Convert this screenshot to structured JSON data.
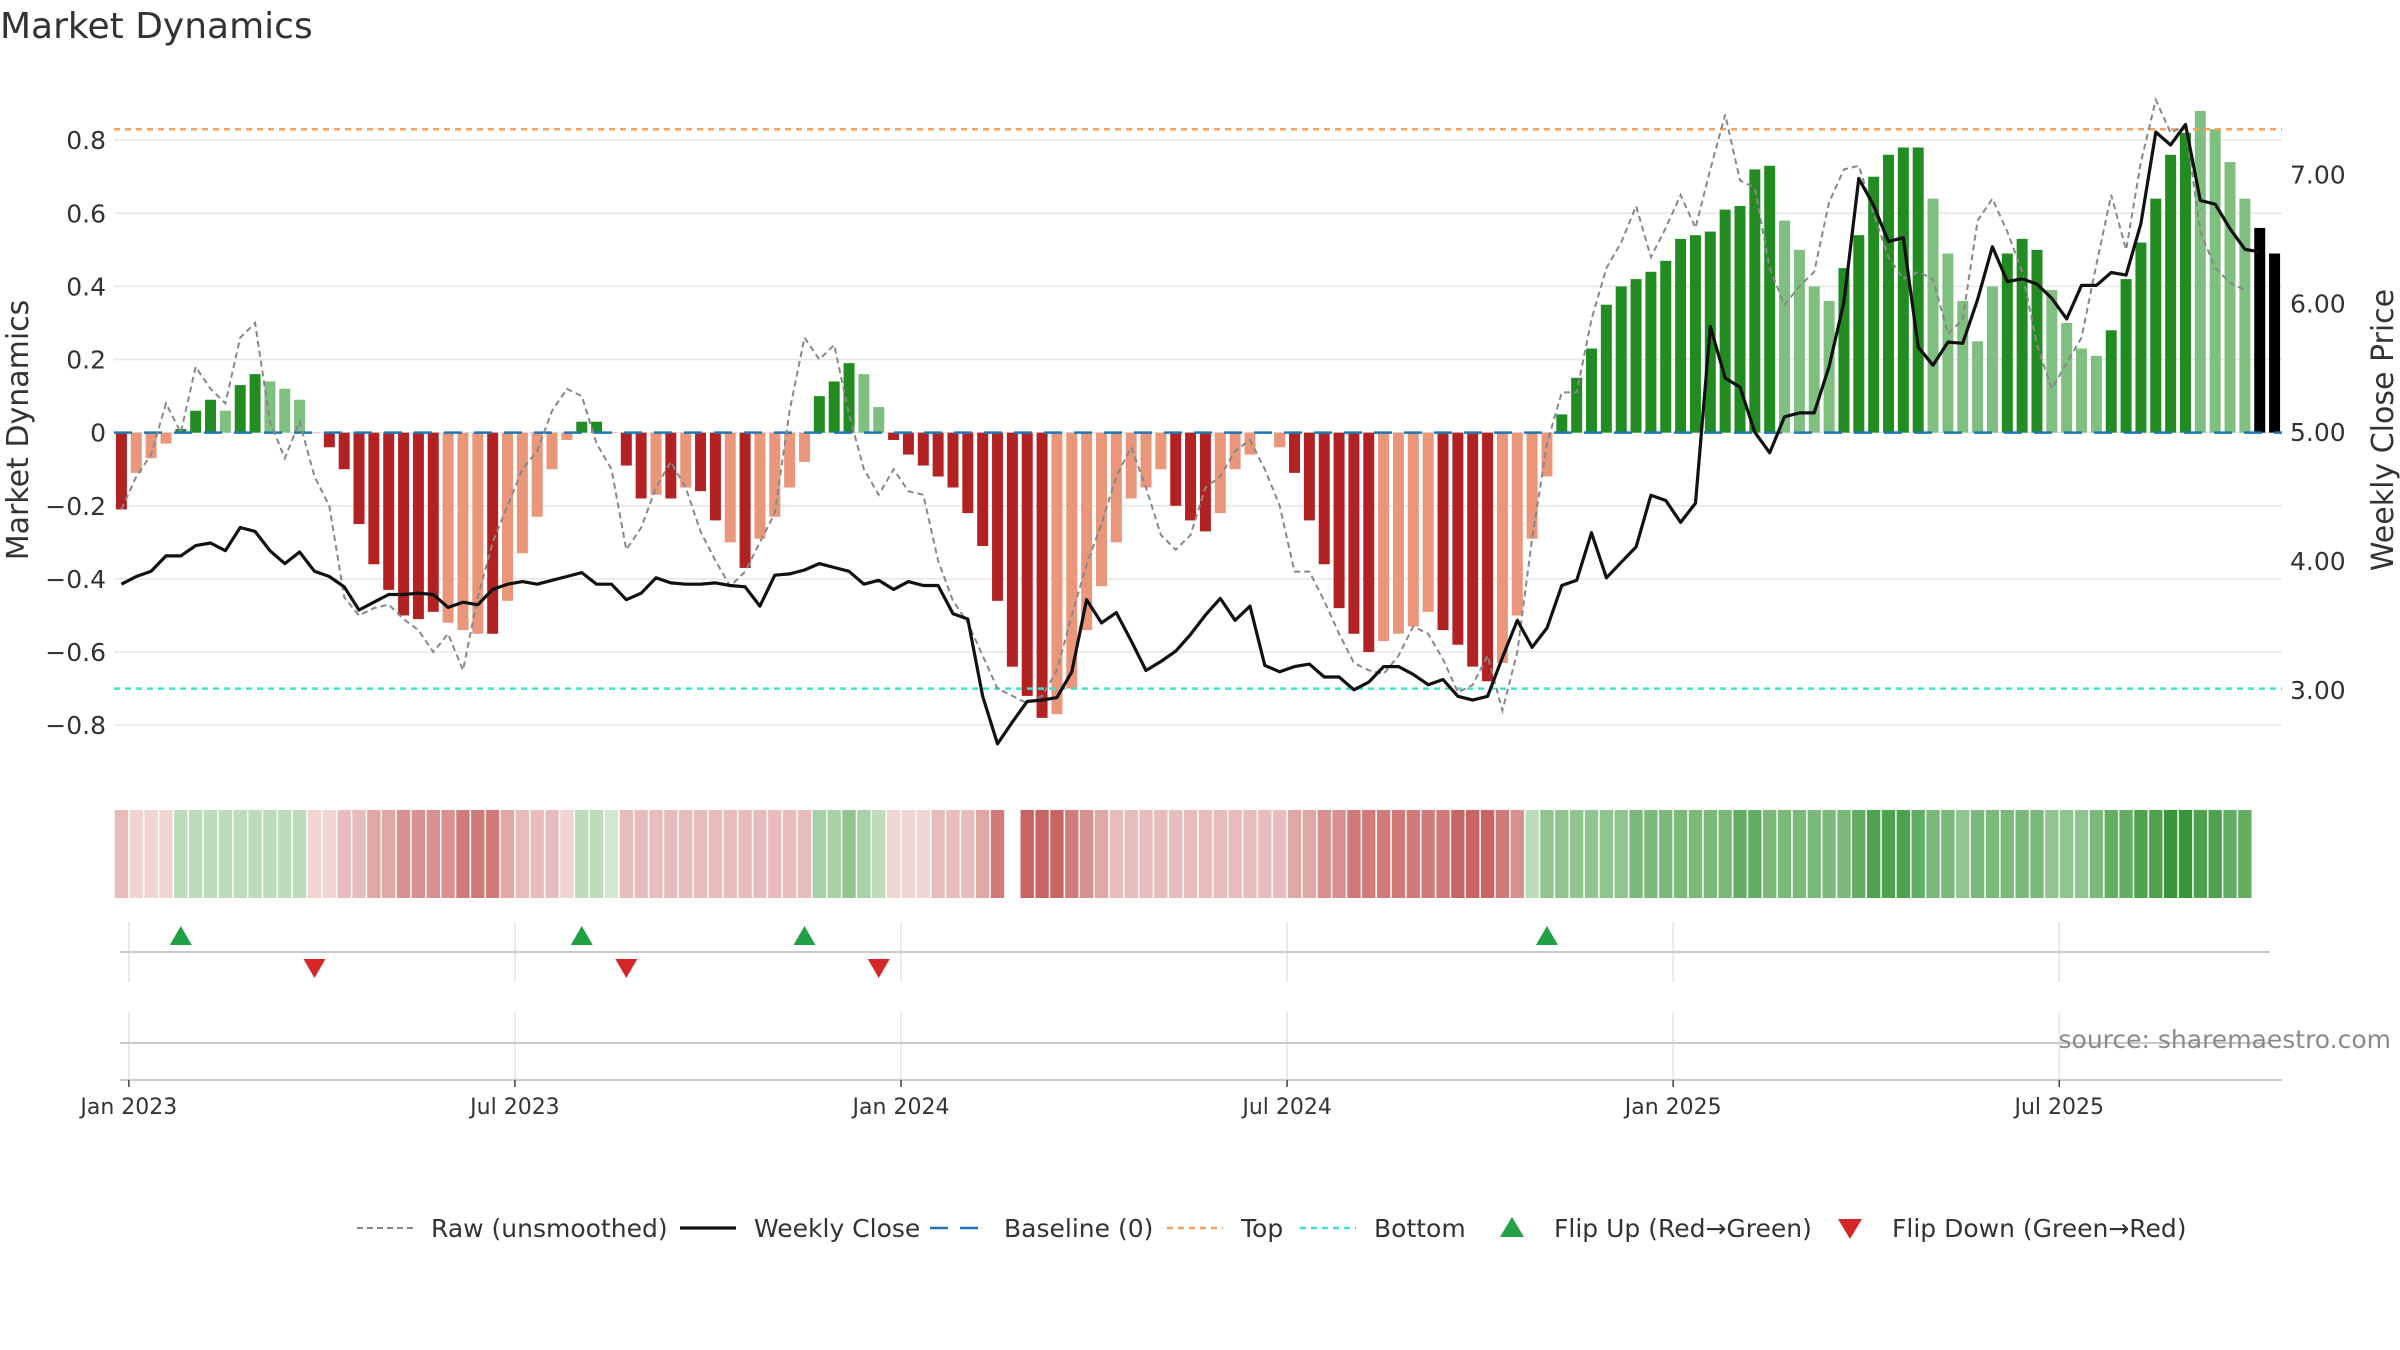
{
  "chart_data": {
    "type": "bar",
    "title": "Market Dynamics",
    "ylabel": "Market Dynamics",
    "y2label": "Weekly Close Price",
    "ylim": [
      -0.95,
      0.97
    ],
    "y2lim": [
      2.3,
      7.75
    ],
    "yticks": [
      "0.8",
      "0.6",
      "0.4",
      "0.2",
      "0",
      "−0.2",
      "−0.4",
      "−0.6",
      "−0.8"
    ],
    "ytick_values": [
      0.8,
      0.6,
      0.4,
      0.2,
      0,
      -0.2,
      -0.4,
      -0.6,
      -0.8
    ],
    "y2ticks": [
      "7.00",
      "6.00",
      "5.00",
      "4.00",
      "3.00"
    ],
    "y2tick_values": [
      7,
      6,
      5,
      4,
      3
    ],
    "xticks": [
      "Jan 2023",
      "Jul 2023",
      "Jan 2024",
      "Jul 2024",
      "Jan 2025",
      "Jul 2025"
    ],
    "xtick_weeks": [
      0.5,
      26.5,
      52.5,
      78.5,
      104.5,
      130.5
    ],
    "week_start": "2022-12-26",
    "x_unit": "weeks",
    "grid": true,
    "top_level": 0.83,
    "bottom_level": -0.7,
    "baseline": 0,
    "source": "source: sharemaestro.com",
    "legend": {
      "position": "bottom-center",
      "entries": [
        {
          "label": "Raw (unsmoothed)",
          "style": "dashed-gray"
        },
        {
          "label": "Weekly Close",
          "style": "solid-black"
        },
        {
          "label": "Baseline (0)",
          "style": "dashed-blue"
        },
        {
          "label": "Top",
          "style": "dotted-orange"
        },
        {
          "label": "Bottom",
          "style": "dotted-cyan"
        },
        {
          "label": "Flip Up (Red→Green)",
          "style": "triangle-up-green"
        },
        {
          "label": "Flip Down (Green→Red)",
          "style": "triangle-down-red"
        }
      ]
    },
    "colors": {
      "strong_red": "#b22222",
      "light_red": "#e9967a",
      "strong_green": "#228b22",
      "light_green": "#7fbf7f",
      "raw": "#888888",
      "close": "#111111",
      "baseline": "#1f77b4",
      "top": "#f4a460",
      "bottom": "#40e0d0",
      "flip_up": "#22a045",
      "flip_down": "#d62728"
    },
    "bars": [
      -0.21,
      -0.11,
      -0.07,
      -0.03,
      0.01,
      0.06,
      0.09,
      0.06,
      0.13,
      0.16,
      0.14,
      0.12,
      0.09,
      0.0,
      -0.04,
      -0.1,
      -0.25,
      -0.36,
      -0.43,
      -0.5,
      -0.51,
      -0.49,
      -0.52,
      -0.54,
      -0.55,
      -0.55,
      -0.46,
      -0.33,
      -0.23,
      -0.1,
      -0.02,
      0.03,
      0.03,
      0.0,
      -0.09,
      -0.18,
      -0.17,
      -0.18,
      -0.15,
      -0.16,
      -0.24,
      -0.3,
      -0.37,
      -0.29,
      -0.23,
      -0.15,
      -0.08,
      0.1,
      0.14,
      0.19,
      0.16,
      0.07,
      -0.02,
      -0.06,
      -0.09,
      -0.12,
      -0.15,
      -0.22,
      -0.31,
      -0.46,
      -0.64,
      -0.72,
      -0.78,
      -0.77,
      -0.7,
      -0.54,
      -0.42,
      -0.3,
      -0.18,
      -0.15,
      -0.1,
      -0.2,
      -0.24,
      -0.27,
      -0.22,
      -0.1,
      -0.06,
      -0.0,
      -0.04,
      -0.11,
      -0.24,
      -0.36,
      -0.48,
      -0.55,
      -0.6,
      -0.57,
      -0.55,
      -0.53,
      -0.49,
      -0.54,
      -0.58,
      -0.64,
      -0.68,
      -0.63,
      -0.5,
      -0.29,
      -0.12,
      0.05,
      0.15,
      0.23,
      0.35,
      0.4,
      0.42,
      0.44,
      0.47,
      0.53,
      0.54,
      0.55,
      0.61,
      0.62,
      0.72,
      0.73,
      0.58,
      0.5,
      0.4,
      0.36,
      0.45,
      0.54,
      0.7,
      0.76,
      0.78,
      0.78,
      0.64,
      0.49,
      0.36,
      0.25,
      0.4,
      0.49,
      0.53,
      0.5,
      0.39,
      0.3,
      0.23,
      0.21,
      0.28,
      0.42,
      0.52,
      0.64,
      0.76,
      0.82,
      0.88,
      0.83,
      0.74,
      0.64,
      0.56,
      0.49
    ],
    "bar_tones": [
      1,
      0,
      0,
      0,
      2,
      2,
      2,
      3,
      2,
      2,
      3,
      3,
      3,
      0,
      1,
      1,
      1,
      1,
      1,
      1,
      1,
      1,
      0,
      0,
      0,
      1,
      0,
      0,
      0,
      0,
      0,
      2,
      2,
      0,
      1,
      1,
      0,
      1,
      0,
      1,
      1,
      0,
      1,
      0,
      0,
      0,
      0,
      2,
      2,
      2,
      3,
      3,
      1,
      1,
      1,
      1,
      1,
      1,
      1,
      1,
      1,
      1,
      1,
      0,
      0,
      0,
      0,
      0,
      0,
      0,
      0,
      1,
      1,
      1,
      0,
      0,
      0,
      0,
      0,
      1,
      1,
      1,
      1,
      1,
      1,
      0,
      0,
      0,
      0,
      1,
      1,
      1,
      1,
      0,
      0,
      0,
      0,
      2,
      2,
      2,
      2,
      2,
      2,
      2,
      2,
      2,
      2,
      2,
      2,
      2,
      2,
      2,
      3,
      3,
      3,
      3,
      2,
      2,
      2,
      2,
      2,
      2,
      3,
      3,
      3,
      3,
      3,
      2,
      2,
      2,
      3,
      3,
      3,
      3,
      2,
      2,
      2,
      2,
      2,
      2,
      3,
      3,
      3,
      3
    ],
    "raw": [
      -0.21,
      -0.12,
      -0.06,
      0.08,
      0.0,
      0.18,
      0.12,
      0.08,
      0.26,
      0.3,
      0.03,
      -0.07,
      0.03,
      -0.12,
      -0.2,
      -0.45,
      -0.5,
      -0.48,
      -0.47,
      -0.51,
      -0.54,
      -0.6,
      -0.55,
      -0.65,
      -0.45,
      -0.3,
      -0.2,
      -0.1,
      -0.05,
      0.06,
      0.12,
      0.1,
      -0.03,
      -0.1,
      -0.32,
      -0.26,
      -0.15,
      -0.08,
      -0.15,
      -0.27,
      -0.35,
      -0.42,
      -0.38,
      -0.3,
      -0.22,
      0.06,
      0.26,
      0.2,
      0.24,
      0.05,
      -0.1,
      -0.17,
      -0.1,
      -0.16,
      -0.17,
      -0.35,
      -0.46,
      -0.52,
      -0.61,
      -0.7,
      -0.72,
      -0.74,
      -0.72,
      -0.65,
      -0.5,
      -0.36,
      -0.25,
      -0.12,
      -0.04,
      -0.15,
      -0.28,
      -0.32,
      -0.28,
      -0.15,
      -0.12,
      -0.05,
      -0.02,
      -0.1,
      -0.2,
      -0.38,
      -0.38,
      -0.46,
      -0.55,
      -0.63,
      -0.65,
      -0.66,
      -0.61,
      -0.53,
      -0.55,
      -0.62,
      -0.71,
      -0.69,
      -0.61,
      -0.76,
      -0.6,
      -0.29,
      -0.03,
      0.11,
      0.11,
      0.31,
      0.45,
      0.52,
      0.62,
      0.48,
      0.56,
      0.65,
      0.56,
      0.72,
      0.87,
      0.69,
      0.67,
      0.45,
      0.35,
      0.4,
      0.44,
      0.63,
      0.72,
      0.73,
      0.6,
      0.48,
      0.42,
      0.44,
      0.42,
      0.27,
      0.31,
      0.58,
      0.64,
      0.55,
      0.44,
      0.24,
      0.12,
      0.19,
      0.26,
      0.46,
      0.65,
      0.5,
      0.74,
      0.91,
      0.82,
      0.84,
      0.55,
      0.45,
      0.41,
      0.39
    ],
    "close": [
      3.82,
      3.88,
      3.92,
      4.04,
      4.04,
      4.12,
      4.14,
      4.08,
      4.26,
      4.23,
      4.08,
      3.98,
      4.07,
      3.92,
      3.88,
      3.8,
      3.62,
      3.68,
      3.74,
      3.74,
      3.75,
      3.74,
      3.64,
      3.68,
      3.66,
      3.78,
      3.82,
      3.84,
      3.82,
      3.85,
      3.88,
      3.91,
      3.82,
      3.82,
      3.7,
      3.75,
      3.87,
      3.83,
      3.82,
      3.82,
      3.83,
      3.81,
      3.8,
      3.65,
      3.89,
      3.9,
      3.93,
      3.98,
      3.95,
      3.92,
      3.82,
      3.85,
      3.78,
      3.84,
      3.81,
      3.81,
      3.59,
      3.55,
      2.95,
      2.58,
      2.75,
      2.91,
      2.92,
      2.94,
      3.14,
      3.7,
      3.52,
      3.6,
      3.38,
      3.15,
      3.22,
      3.3,
      3.43,
      3.58,
      3.71,
      3.54,
      3.65,
      3.19,
      3.14,
      3.18,
      3.2,
      3.1,
      3.1,
      3.0,
      3.06,
      3.18,
      3.18,
      3.12,
      3.04,
      3.08,
      2.95,
      2.92,
      2.95,
      3.25,
      3.54,
      3.33,
      3.48,
      3.81,
      3.85,
      4.22,
      3.87,
      3.99,
      4.11,
      4.51,
      4.47,
      4.3,
      4.45,
      5.82,
      5.42,
      5.35,
      5.0,
      4.84,
      5.12,
      5.15,
      5.15,
      5.51,
      6.01,
      6.97,
      6.76,
      6.48,
      6.51,
      5.66,
      5.52,
      5.7,
      5.69,
      6.03,
      6.44,
      6.17,
      6.19,
      6.15,
      6.04,
      5.88,
      6.14,
      6.14,
      6.24,
      6.22,
      6.62,
      7.33,
      7.23,
      7.39,
      6.8,
      6.77,
      6.58,
      6.42,
      6.4
    ],
    "strip_tones": [
      1,
      1,
      1,
      1,
      2,
      2,
      2,
      2,
      2,
      2,
      2,
      2,
      2,
      1,
      1,
      1,
      1,
      1,
      1,
      1,
      1,
      1,
      1,
      1,
      1,
      1,
      1,
      1,
      1,
      1,
      1,
      2,
      2,
      2,
      1,
      1,
      1,
      1,
      1,
      1,
      1,
      1,
      1,
      1,
      1,
      1,
      1,
      2,
      2,
      2,
      2,
      2,
      1,
      1,
      1,
      1,
      1,
      1,
      1,
      1,
      -1,
      1,
      1,
      1,
      1,
      1,
      1,
      1,
      1,
      1,
      1,
      1,
      1,
      1,
      1,
      1,
      1,
      1,
      1,
      1,
      1,
      1,
      1,
      1,
      1,
      1,
      1,
      1,
      1,
      1,
      1,
      1,
      1,
      1,
      1,
      2,
      2,
      2,
      2,
      2,
      2,
      2,
      2,
      2,
      2,
      2,
      2,
      2,
      2,
      2,
      2,
      2,
      2,
      2,
      2,
      2,
      2,
      2,
      2,
      2,
      2,
      2,
      2,
      2,
      2,
      2,
      2,
      2,
      2,
      2,
      2,
      2,
      2,
      2,
      2,
      2,
      2,
      2,
      2,
      2,
      2,
      2,
      2,
      2
    ],
    "strip_alpha": [
      0.3,
      0.2,
      0.2,
      0.2,
      0.3,
      0.3,
      0.3,
      0.3,
      0.3,
      0.3,
      0.3,
      0.3,
      0.3,
      0.2,
      0.2,
      0.3,
      0.3,
      0.4,
      0.4,
      0.5,
      0.5,
      0.5,
      0.5,
      0.6,
      0.6,
      0.6,
      0.4,
      0.3,
      0.3,
      0.3,
      0.2,
      0.3,
      0.3,
      0.2,
      0.3,
      0.3,
      0.3,
      0.3,
      0.3,
      0.3,
      0.3,
      0.3,
      0.3,
      0.3,
      0.3,
      0.3,
      0.3,
      0.4,
      0.4,
      0.5,
      0.4,
      0.3,
      0.2,
      0.2,
      0.2,
      0.3,
      0.3,
      0.3,
      0.4,
      0.6,
      0.0,
      0.7,
      0.7,
      0.7,
      0.6,
      0.5,
      0.4,
      0.3,
      0.3,
      0.3,
      0.3,
      0.3,
      0.3,
      0.3,
      0.3,
      0.3,
      0.3,
      0.3,
      0.3,
      0.4,
      0.4,
      0.5,
      0.5,
      0.6,
      0.6,
      0.6,
      0.6,
      0.6,
      0.6,
      0.6,
      0.7,
      0.7,
      0.7,
      0.6,
      0.5,
      0.3,
      0.5,
      0.5,
      0.5,
      0.5,
      0.5,
      0.5,
      0.6,
      0.6,
      0.6,
      0.6,
      0.6,
      0.6,
      0.6,
      0.7,
      0.7,
      0.6,
      0.6,
      0.6,
      0.6,
      0.6,
      0.6,
      0.7,
      0.8,
      0.8,
      0.8,
      0.7,
      0.6,
      0.6,
      0.5,
      0.6,
      0.6,
      0.6,
      0.6,
      0.6,
      0.5,
      0.5,
      0.5,
      0.6,
      0.7,
      0.7,
      0.8,
      0.8,
      0.9,
      0.9,
      0.8,
      0.8,
      0.7,
      0.7,
      0.6
    ],
    "flip_up_weeks": [
      4,
      31,
      46,
      96
    ],
    "flip_down_weeks": [
      13,
      34,
      51
    ]
  }
}
